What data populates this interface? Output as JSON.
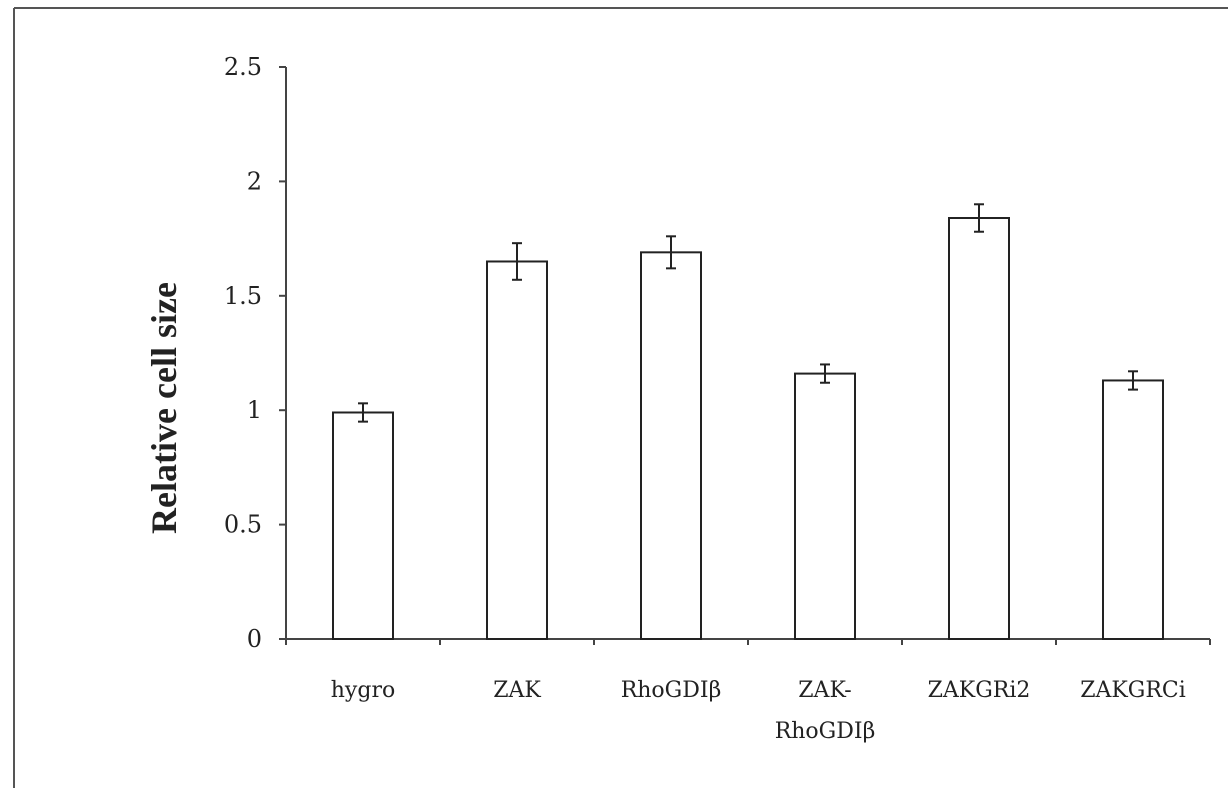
{
  "chart_data": {
    "type": "bar",
    "title": "",
    "xlabel": "",
    "ylabel": "Relative cell size",
    "ylim": [
      0,
      2.5
    ],
    "yticks": [
      0,
      0.5,
      1,
      1.5,
      2,
      2.5
    ],
    "ytick_labels": [
      "0",
      "0.5",
      "1",
      "1.5",
      "2",
      "2.5"
    ],
    "grid": false,
    "legend": "none",
    "categories": [
      {
        "line1": "hygro",
        "line2": ""
      },
      {
        "line1": "ZAK",
        "line2": ""
      },
      {
        "line1": "RhoGDIβ",
        "line2": ""
      },
      {
        "line1": "ZAK-",
        "line2": "RhoGDIβ"
      },
      {
        "line1": "ZAKGRi2",
        "line2": ""
      },
      {
        "line1": "ZAKGRCi",
        "line2": ""
      }
    ],
    "values": [
      0.99,
      1.65,
      1.69,
      1.16,
      1.84,
      1.13
    ],
    "errors": [
      0.04,
      0.08,
      0.07,
      0.04,
      0.06,
      0.04
    ],
    "colors": {
      "bar_fill": "#ffffff",
      "bar_stroke": "#222222",
      "axis": "#444444"
    }
  }
}
